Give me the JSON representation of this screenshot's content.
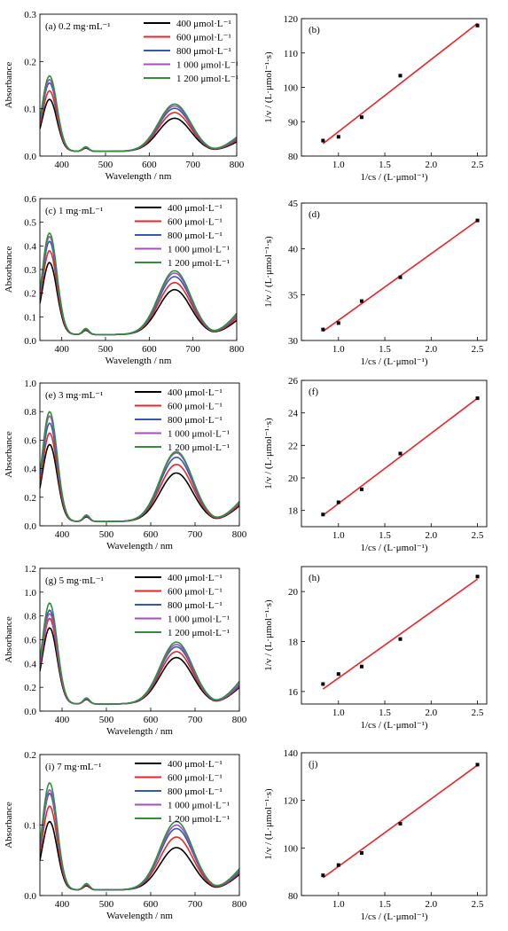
{
  "chart_data": [
    {
      "type": "line",
      "panel": "(a)",
      "title": "0.2 mg·mL⁻¹",
      "xlabel": "Wavelength / nm",
      "ylabel": "Absorbance",
      "xlim": [
        350,
        800
      ],
      "ylim": [
        0,
        0.3
      ],
      "xticks": [
        400,
        500,
        600,
        700,
        800
      ],
      "yticks": [
        0.0,
        0.1,
        0.2,
        0.3
      ],
      "ytick_decimals": 1,
      "legend_position": "top-center",
      "series": [
        {
          "name": "400 μmol·L⁻¹",
          "color": "#000000",
          "peak1": 0.12,
          "peak2": 0.08,
          "tail": 0.03
        },
        {
          "name": "600 μmol·L⁻¹",
          "color": "#e8262b",
          "peak1": 0.138,
          "peak2": 0.092,
          "tail": 0.033
        },
        {
          "name": "800 μmol·L⁻¹",
          "color": "#3458b3",
          "peak1": 0.155,
          "peak2": 0.101,
          "tail": 0.036
        },
        {
          "name": "1 000 μmol·L⁻¹",
          "color": "#a64fc0",
          "peak1": 0.162,
          "peak2": 0.106,
          "tail": 0.038
        },
        {
          "name": "1 200 μmol·L⁻¹",
          "color": "#2f8f3b",
          "peak1": 0.17,
          "peak2": 0.11,
          "tail": 0.04
        }
      ],
      "floor": 0.01
    },
    {
      "type": "scatter",
      "panel": "(b)",
      "xlabel": "1/cs / (L·μmol⁻¹)",
      "ylabel": "1/v / (L·μmol⁻¹·s)",
      "xlim": [
        0.6,
        2.6
      ],
      "ylim": [
        80,
        120
      ],
      "xticks": [
        1.0,
        1.5,
        2.0,
        2.5
      ],
      "yticks": [
        80,
        90,
        100,
        110,
        120
      ],
      "ytick_decimals": 0,
      "x": [
        0.833,
        1.0,
        1.25,
        1.667,
        2.5
      ],
      "y": [
        84.5,
        85.6,
        91.3,
        103.4,
        118.0
      ],
      "fit": {
        "x": [
          0.833,
          2.5
        ],
        "y": [
          83.6,
          118.6
        ],
        "color": "#e8262b"
      }
    },
    {
      "type": "line",
      "panel": "(c)",
      "title": "1 mg·mL⁻¹",
      "xlabel": "Wavelength / nm",
      "ylabel": "Absorbance",
      "xlim": [
        350,
        800
      ],
      "ylim": [
        0,
        0.6
      ],
      "xticks": [
        400,
        500,
        600,
        700,
        800
      ],
      "yticks": [
        0.0,
        0.1,
        0.2,
        0.3,
        0.4,
        0.5,
        0.6
      ],
      "ytick_decimals": 1,
      "legend_position": "top-right",
      "series": [
        {
          "name": "400 μmol·L⁻¹",
          "color": "#000000",
          "peak1": 0.33,
          "peak2": 0.215,
          "tail": 0.085
        },
        {
          "name": "600 μmol·L⁻¹",
          "color": "#e8262b",
          "peak1": 0.38,
          "peak2": 0.245,
          "tail": 0.095
        },
        {
          "name": "800 μmol·L⁻¹",
          "color": "#3458b3",
          "peak1": 0.42,
          "peak2": 0.27,
          "tail": 0.105
        },
        {
          "name": "1 000 μmol·L⁻¹",
          "color": "#a64fc0",
          "peak1": 0.44,
          "peak2": 0.285,
          "tail": 0.11
        },
        {
          "name": "1 200 μmol·L⁻¹",
          "color": "#2f8f3b",
          "peak1": 0.455,
          "peak2": 0.295,
          "tail": 0.115
        }
      ],
      "floor": 0.025
    },
    {
      "type": "scatter",
      "panel": "(d)",
      "xlabel": "1/cs / (L·μmol⁻¹)",
      "ylabel": "1/v / (L·μmol⁻¹·s)",
      "xlim": [
        0.6,
        2.6
      ],
      "ylim": [
        30,
        45
      ],
      "xticks": [
        1.0,
        1.5,
        2.0,
        2.5
      ],
      "yticks": [
        30,
        35,
        40,
        45
      ],
      "ytick_decimals": 0,
      "x": [
        0.833,
        1.0,
        1.25,
        1.667,
        2.5
      ],
      "y": [
        31.2,
        31.9,
        34.3,
        36.9,
        43.1
      ],
      "fit": {
        "x": [
          0.833,
          2.5
        ],
        "y": [
          31.0,
          43.1
        ],
        "color": "#e8262b"
      }
    },
    {
      "type": "line",
      "panel": "(e)",
      "title": "3 mg·mL⁻¹",
      "xlabel": "Wavelength / nm",
      "ylabel": "Absorbance",
      "xlim": [
        350,
        800
      ],
      "ylim": [
        0,
        1.0
      ],
      "xticks": [
        400,
        500,
        600,
        700,
        800
      ],
      "yticks": [
        0.0,
        0.2,
        0.4,
        0.6,
        0.8,
        1.0
      ],
      "ytick_decimals": 1,
      "legend_position": "top-right",
      "series": [
        {
          "name": "400 μmol·L⁻¹",
          "color": "#000000",
          "peak1": 0.57,
          "peak2": 0.37,
          "tail": 0.14
        },
        {
          "name": "600 μmol·L⁻¹",
          "color": "#e8262b",
          "peak1": 0.65,
          "peak2": 0.43,
          "tail": 0.15
        },
        {
          "name": "800 μmol·L⁻¹",
          "color": "#3458b3",
          "peak1": 0.72,
          "peak2": 0.48,
          "tail": 0.16
        },
        {
          "name": "1 000 μmol·L⁻¹",
          "color": "#a64fc0",
          "peak1": 0.77,
          "peak2": 0.51,
          "tail": 0.165
        },
        {
          "name": "1 200 μmol·L⁻¹",
          "color": "#2f8f3b",
          "peak1": 0.8,
          "peak2": 0.52,
          "tail": 0.17
        }
      ],
      "floor": 0.03
    },
    {
      "type": "scatter",
      "panel": "(f)",
      "xlabel": "1/cs / (L·μmol⁻¹)",
      "ylabel": "1/v / (L·μmol⁻¹·s)",
      "xlim": [
        0.6,
        2.6
      ],
      "ylim": [
        17,
        26
      ],
      "xticks": [
        1.0,
        1.5,
        2.0,
        2.5
      ],
      "yticks": [
        18,
        20,
        22,
        24,
        26
      ],
      "ytick_decimals": 0,
      "x": [
        0.833,
        1.0,
        1.25,
        1.667,
        2.5
      ],
      "y": [
        17.75,
        18.5,
        19.3,
        21.5,
        24.9
      ],
      "fit": {
        "x": [
          0.833,
          2.5
        ],
        "y": [
          17.7,
          24.9
        ],
        "color": "#e8262b"
      }
    },
    {
      "type": "line",
      "panel": "(g)",
      "title": "5 mg·mL⁻¹",
      "xlabel": "Wavelength / nm",
      "ylabel": "Absorbance",
      "xlim": [
        350,
        800
      ],
      "ylim": [
        0,
        1.2
      ],
      "xticks": [
        400,
        500,
        600,
        700,
        800
      ],
      "yticks": [
        0.0,
        0.2,
        0.4,
        0.6,
        0.8,
        1.0,
        1.2
      ],
      "ytick_decimals": 1,
      "legend_position": "top-right",
      "series": [
        {
          "name": "400 μmol·L⁻¹",
          "color": "#000000",
          "peak1": 0.7,
          "peak2": 0.45,
          "tail": 0.2
        },
        {
          "name": "600 μmol·L⁻¹",
          "color": "#e8262b",
          "peak1": 0.78,
          "peak2": 0.5,
          "tail": 0.21
        },
        {
          "name": "800 μmol·L⁻¹",
          "color": "#3458b3",
          "peak1": 0.85,
          "peak2": 0.54,
          "tail": 0.22
        },
        {
          "name": "1 000 μmol·L⁻¹",
          "color": "#a64fc0",
          "peak1": 0.82,
          "peak2": 0.56,
          "tail": 0.23
        },
        {
          "name": "1 200 μmol·L⁻¹",
          "color": "#2f8f3b",
          "peak1": 0.91,
          "peak2": 0.58,
          "tail": 0.25
        }
      ],
      "floor": 0.06
    },
    {
      "type": "scatter",
      "panel": "(h)",
      "xlabel": "1/cs / (L·μmol⁻¹)",
      "ylabel": "1/v / (L·μmol⁻¹·s)",
      "xlim": [
        0.6,
        2.6
      ],
      "ylim": [
        15.5,
        21
      ],
      "xticks": [
        1.0,
        1.5,
        2.0,
        2.5
      ],
      "yticks": [
        16,
        18,
        20
      ],
      "ytick_decimals": 0,
      "x": [
        0.833,
        1.0,
        1.25,
        1.667,
        2.5
      ],
      "y": [
        16.3,
        16.7,
        17.0,
        18.1,
        20.6
      ],
      "fit": {
        "x": [
          0.833,
          2.5
        ],
        "y": [
          16.1,
          20.5
        ],
        "color": "#e8262b"
      }
    },
    {
      "type": "line",
      "panel": "(i)",
      "title": "7 mg·mL⁻¹",
      "xlabel": "Wavelength / nm",
      "ylabel": "Absorbance",
      "xlim": [
        350,
        800
      ],
      "ylim": [
        0,
        0.2
      ],
      "xticks": [
        400,
        500,
        600,
        700,
        800
      ],
      "yticks": [
        0.0,
        0.05,
        0.1,
        0.15,
        0.2
      ],
      "ytick_labels": [
        "0.0",
        "",
        "0.1",
        "",
        "0.2"
      ],
      "ytick_decimals": 1,
      "legend_position": "top-right",
      "series": [
        {
          "name": "400 μmol·L⁻¹",
          "color": "#000000",
          "peak1": 0.105,
          "peak2": 0.068,
          "tail": 0.03
        },
        {
          "name": "600 μmol·L⁻¹",
          "color": "#e8262b",
          "peak1": 0.127,
          "peak2": 0.083,
          "tail": 0.032
        },
        {
          "name": "800 μmol·L⁻¹",
          "color": "#3458b3",
          "peak1": 0.145,
          "peak2": 0.095,
          "tail": 0.034
        },
        {
          "name": "1 000 μmol·L⁻¹",
          "color": "#a64fc0",
          "peak1": 0.15,
          "peak2": 0.1,
          "tail": 0.036
        },
        {
          "name": "1 200 μmol·L⁻¹",
          "color": "#2f8f3b",
          "peak1": 0.16,
          "peak2": 0.105,
          "tail": 0.038
        }
      ],
      "floor": 0.008
    },
    {
      "type": "scatter",
      "panel": "(j)",
      "xlabel": "1/cs / (L·μmol⁻¹)",
      "ylabel": "1/v / (L·μmol⁻¹·s)",
      "xlim": [
        0.6,
        2.6
      ],
      "ylim": [
        80,
        140
      ],
      "xticks": [
        1.0,
        1.5,
        2.0,
        2.5
      ],
      "yticks": [
        80,
        100,
        120,
        140
      ],
      "ytick_decimals": 0,
      "x": [
        0.833,
        1.0,
        1.25,
        1.667,
        2.5
      ],
      "y": [
        88.5,
        92.8,
        97.9,
        110.2,
        135.0
      ],
      "fit": {
        "x": [
          0.833,
          2.5
        ],
        "y": [
          87.5,
          134.8
        ],
        "color": "#e8262b"
      }
    }
  ]
}
